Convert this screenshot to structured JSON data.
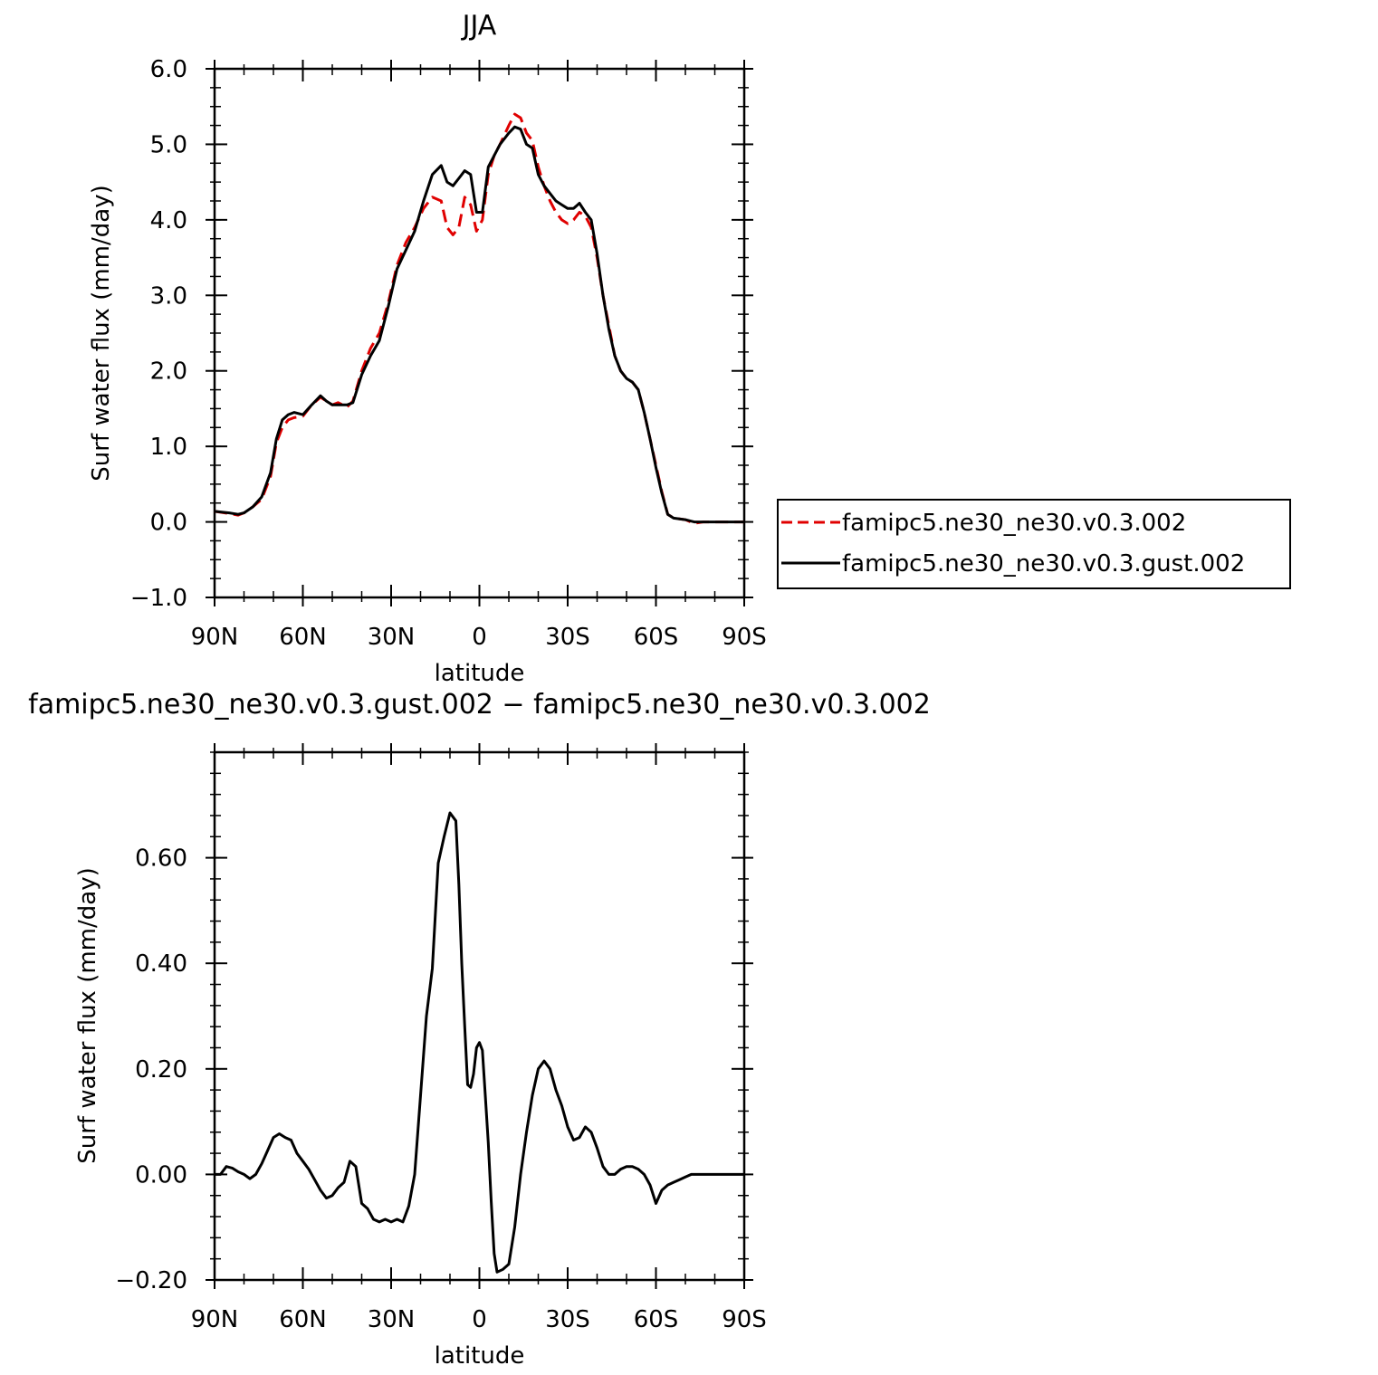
{
  "chart_data": [
    {
      "type": "line",
      "title": "JJA",
      "xlabel": "latitude",
      "ylabel": "Surf water flux (mm/day)",
      "x_tick_labels": [
        "90N",
        "60N",
        "30N",
        "0",
        "30S",
        "60S",
        "90S"
      ],
      "x_ticks": [
        90,
        60,
        30,
        0,
        -30,
        -60,
        -90
      ],
      "xlim": [
        90,
        -90
      ],
      "ylim": [
        -1.0,
        6.0
      ],
      "y_tick_labels": [
        "6.0",
        "5.0",
        "4.0",
        "3.0",
        "2.0",
        "1.0",
        "0.0",
        "−1.0"
      ],
      "y_ticks": [
        6.0,
        5.0,
        4.0,
        3.0,
        2.0,
        1.0,
        0.0,
        -1.0
      ],
      "grid": false,
      "legend_position": "right",
      "series": [
        {
          "name": "famipc5.ne30_ne30.v0.3.002",
          "color": "#e00000",
          "dash": "dashed",
          "x": [
            90,
            85,
            82,
            80,
            77,
            74,
            71,
            69,
            67,
            65,
            63,
            60,
            57,
            54,
            52,
            50,
            48,
            45,
            43,
            40,
            37,
            34,
            31,
            28,
            25,
            22,
            19,
            16,
            13,
            11,
            9,
            7,
            5,
            3,
            1,
            -1,
            -3,
            -5,
            -7,
            -10,
            -12,
            -14,
            -16,
            -18,
            -20,
            -22,
            -24,
            -26,
            -28,
            -30,
            -32,
            -34,
            -36,
            -38,
            -40,
            -42,
            -44,
            -46,
            -48,
            -50,
            -52,
            -54,
            -56,
            -58,
            -60,
            -62,
            -64,
            -66,
            -68,
            -70,
            -73,
            -76,
            -78,
            -80,
            -85,
            -90
          ],
          "y": [
            0.14,
            0.11,
            0.09,
            0.12,
            0.2,
            0.3,
            0.6,
            1.05,
            1.25,
            1.35,
            1.38,
            1.4,
            1.55,
            1.65,
            1.6,
            1.55,
            1.58,
            1.52,
            1.6,
            2.0,
            2.3,
            2.5,
            2.9,
            3.4,
            3.7,
            3.9,
            4.15,
            4.3,
            4.25,
            3.9,
            3.8,
            3.9,
            4.3,
            4.2,
            3.85,
            4.0,
            4.6,
            4.85,
            5.0,
            5.25,
            5.4,
            5.35,
            5.15,
            5.05,
            4.7,
            4.45,
            4.25,
            4.1,
            4.0,
            3.95,
            4.0,
            4.1,
            4.05,
            3.9,
            3.5,
            3.0,
            2.6,
            2.2,
            2.0,
            1.9,
            1.85,
            1.75,
            1.45,
            1.1,
            0.75,
            0.4,
            0.1,
            0.05,
            0.04,
            0.03,
            -0.02,
            0.0,
            0.0,
            0.0,
            0.0,
            0.0
          ]
        },
        {
          "name": "famipc5.ne30_ne30.v0.3.gust.002",
          "color": "#000000",
          "dash": "solid",
          "x": [
            90,
            85,
            82,
            80,
            77,
            74,
            71,
            69,
            67,
            65,
            63,
            60,
            57,
            54,
            52,
            50,
            48,
            45,
            43,
            40,
            37,
            34,
            31,
            28,
            25,
            22,
            19,
            16,
            13,
            11,
            9,
            7,
            5,
            3,
            1,
            -1,
            -3,
            -5,
            -7,
            -10,
            -12,
            -14,
            -16,
            -18,
            -20,
            -22,
            -24,
            -26,
            -28,
            -30,
            -32,
            -34,
            -36,
            -38,
            -40,
            -42,
            -44,
            -46,
            -48,
            -50,
            -52,
            -54,
            -56,
            -58,
            -60,
            -62,
            -64,
            -66,
            -68,
            -70,
            -73,
            -76,
            -78,
            -80,
            -85,
            -90
          ],
          "y": [
            0.14,
            0.12,
            0.1,
            0.12,
            0.2,
            0.33,
            0.65,
            1.1,
            1.35,
            1.42,
            1.45,
            1.42,
            1.55,
            1.67,
            1.6,
            1.55,
            1.55,
            1.55,
            1.58,
            1.95,
            2.2,
            2.4,
            2.85,
            3.35,
            3.6,
            3.85,
            4.25,
            4.6,
            4.72,
            4.5,
            4.45,
            4.55,
            4.65,
            4.6,
            4.1,
            4.1,
            4.7,
            4.85,
            5.0,
            5.15,
            5.23,
            5.2,
            5.0,
            4.95,
            4.6,
            4.45,
            4.35,
            4.25,
            4.2,
            4.15,
            4.15,
            4.22,
            4.1,
            4.0,
            3.55,
            3.0,
            2.55,
            2.2,
            2.0,
            1.9,
            1.85,
            1.75,
            1.45,
            1.1,
            0.72,
            0.38,
            0.1,
            0.05,
            0.04,
            0.03,
            0.0,
            0.0,
            0.0,
            0.0,
            0.0,
            0.0
          ]
        }
      ]
    },
    {
      "type": "line",
      "title": "famipc5.ne30_ne30.v0.3.gust.002 − famipc5.ne30_ne30.v0.3.002",
      "xlabel": "latitude",
      "ylabel": "Surf water flux (mm/day)",
      "x_tick_labels": [
        "90N",
        "60N",
        "30N",
        "0",
        "30S",
        "60S",
        "90S"
      ],
      "x_ticks": [
        90,
        60,
        30,
        0,
        -30,
        -60,
        -90
      ],
      "xlim": [
        90,
        -90
      ],
      "ylim": [
        -0.2,
        0.8
      ],
      "y_tick_labels": [
        "0.60",
        "0.40",
        "0.20",
        "0.00",
        "−0.20"
      ],
      "y_ticks": [
        0.6,
        0.4,
        0.2,
        0.0,
        -0.2
      ],
      "grid": false,
      "series": [
        {
          "name": "",
          "color": "#000000",
          "dash": "solid",
          "x": [
            90,
            88,
            86,
            84,
            82,
            80,
            78,
            76,
            74,
            72,
            70,
            68,
            66,
            64,
            62,
            60,
            58,
            56,
            54,
            52,
            50,
            48,
            46,
            44,
            42,
            40,
            38,
            36,
            34,
            32,
            30,
            28,
            26,
            24,
            22,
            20,
            18,
            16,
            14,
            12,
            10,
            8,
            7,
            6,
            5,
            4,
            3,
            2,
            1,
            0,
            -1,
            -2,
            -3,
            -4,
            -5,
            -6,
            -8,
            -10,
            -12,
            -14,
            -16,
            -18,
            -20,
            -22,
            -24,
            -26,
            -28,
            -30,
            -32,
            -34,
            -36,
            -38,
            -40,
            -42,
            -44,
            -46,
            -48,
            -50,
            -52,
            -54,
            -56,
            -58,
            -60,
            -62,
            -64,
            -66,
            -68,
            -70,
            -72,
            -74,
            -76,
            -78,
            -80,
            -85,
            -90
          ],
          "y": [
            0.0,
            0.0,
            0.015,
            0.012,
            0.005,
            0.0,
            -0.008,
            0.0,
            0.02,
            0.045,
            0.07,
            0.077,
            0.07,
            0.065,
            0.04,
            0.025,
            0.01,
            -0.01,
            -0.03,
            -0.045,
            -0.04,
            -0.025,
            -0.015,
            0.025,
            0.015,
            -0.055,
            -0.065,
            -0.085,
            -0.09,
            -0.085,
            -0.09,
            -0.085,
            -0.09,
            -0.06,
            0.0,
            0.15,
            0.3,
            0.39,
            0.59,
            0.64,
            0.685,
            0.67,
            0.55,
            0.4,
            0.28,
            0.17,
            0.165,
            0.19,
            0.24,
            0.25,
            0.235,
            0.15,
            0.06,
            -0.05,
            -0.15,
            -0.185,
            -0.18,
            -0.17,
            -0.1,
            0.0,
            0.08,
            0.15,
            0.2,
            0.215,
            0.2,
            0.16,
            0.13,
            0.09,
            0.065,
            0.07,
            0.09,
            0.08,
            0.05,
            0.015,
            0.0,
            0.0,
            0.01,
            0.015,
            0.015,
            0.01,
            0.0,
            -0.02,
            -0.055,
            -0.03,
            -0.02,
            -0.015,
            -0.01,
            -0.005,
            0.0,
            0.0,
            0.0,
            0.0,
            0.0,
            0.0,
            0.0
          ]
        }
      ]
    }
  ]
}
